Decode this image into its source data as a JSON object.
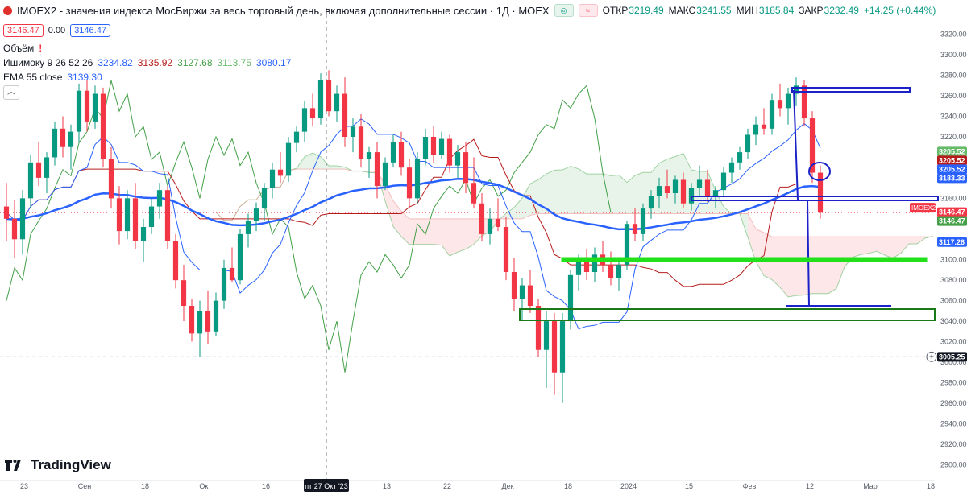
{
  "header": {
    "title": "IMOEX2 - значения индекса МосБиржи за весь торговый день, включая дополнительные сессии · 1Д · MOEX",
    "open_label": "ОТКР",
    "open": "3219.49",
    "high_label": "МАКС",
    "high": "3241.55",
    "low_label": "МИН",
    "low": "3185.84",
    "close_label": "ЗАКР",
    "close": "3232.49",
    "change": "+14.25 (+0.44%)",
    "bid": "3146.47",
    "spread": "0.00",
    "ask": "3146.47"
  },
  "indicators": {
    "volume_label": "Объём",
    "volume_warning": "!",
    "ichimoku_label": "Ишимоку 9 26 52 26",
    "ichimoku_values": [
      "3234.82",
      "3135.92",
      "3127.68",
      "3113.75",
      "3080.17"
    ],
    "ichimoku_colors": [
      "#2962ff",
      "#b71c1c",
      "#43a047",
      "#66bb6a",
      "#2962ff"
    ],
    "ema_label": "EMA 55 close",
    "ema_value": "3139.30",
    "collapse_icon": "chevron-up-icon"
  },
  "branding": {
    "name": "TradingView"
  },
  "colors": {
    "up": "#089981",
    "down": "#f23645",
    "ema": "#2962ff",
    "tenkan": "#2962ff",
    "kijun": "#b71c1c",
    "chikou": "#43a047"
  },
  "chart_data": {
    "type": "candlestick",
    "symbol": "IMOEX2",
    "timeframe": "1Д",
    "ylim": [
      2890,
      3330
    ],
    "y_ticks": [
      2900,
      2920,
      2940,
      2960,
      2980,
      3000,
      3020,
      3040,
      3060,
      3080,
      3100,
      3120,
      3140,
      3160,
      3180,
      3200,
      3220,
      3240,
      3260,
      3280,
      3300,
      3320
    ],
    "x_labels": [
      "23",
      "Сен",
      "18",
      "Окт",
      "16",
      "пт 27 Окт '23",
      "13",
      "22",
      "Дек",
      "18",
      "2024",
      "15",
      "Фев",
      "12",
      "Мар",
      "18"
    ],
    "crosshair_date": "пт 27 Окт '23",
    "crosshair_price": "3005.25",
    "price_labels": [
      {
        "text": "3205.52",
        "price": 3205.52,
        "color": "#66bb6a"
      },
      {
        "text": "3205.52",
        "price": 3205.52,
        "color": "#b71c1c"
      },
      {
        "text": "3205.52",
        "price": 3205.52,
        "color": "#2962ff"
      },
      {
        "text": "3183.33",
        "price": 3183.33,
        "color": "#2962ff"
      },
      {
        "text": "3146.47",
        "price": 3146.47,
        "color": "#f23645"
      },
      {
        "text": "3146.47",
        "price": 3146.47,
        "color": "#43a047"
      },
      {
        "text": "3117.26",
        "price": 3117.26,
        "color": "#2962ff"
      },
      {
        "text": "3005.25",
        "price": 3005.25,
        "color": "#131722"
      }
    ],
    "symbol_tag": "IMOEX2",
    "ohlc": [
      [
        3152,
        3175,
        3118,
        3140
      ],
      [
        3140,
        3158,
        3102,
        3120
      ],
      [
        3120,
        3168,
        3105,
        3160
      ],
      [
        3160,
        3202,
        3150,
        3195
      ],
      [
        3195,
        3215,
        3172,
        3180
      ],
      [
        3180,
        3205,
        3165,
        3200
      ],
      [
        3200,
        3235,
        3192,
        3228
      ],
      [
        3228,
        3240,
        3200,
        3210
      ],
      [
        3210,
        3232,
        3188,
        3225
      ],
      [
        3225,
        3272,
        3215,
        3265
      ],
      [
        3265,
        3275,
        3225,
        3235
      ],
      [
        3235,
        3270,
        3228,
        3262
      ],
      [
        3262,
        3268,
        3190,
        3198
      ],
      [
        3198,
        3210,
        3150,
        3160
      ],
      [
        3160,
        3172,
        3115,
        3128
      ],
      [
        3128,
        3168,
        3120,
        3160
      ],
      [
        3160,
        3175,
        3110,
        3118
      ],
      [
        3118,
        3140,
        3098,
        3132
      ],
      [
        3132,
        3160,
        3125,
        3152
      ],
      [
        3152,
        3175,
        3140,
        3168
      ],
      [
        3168,
        3172,
        3110,
        3118
      ],
      [
        3118,
        3125,
        3072,
        3080
      ],
      [
        3080,
        3095,
        3040,
        3055
      ],
      [
        3055,
        3062,
        3020,
        3028
      ],
      [
        3028,
        3060,
        3005,
        3050
      ],
      [
        3050,
        3070,
        3018,
        3030
      ],
      [
        3030,
        3068,
        3025,
        3060
      ],
      [
        3060,
        3100,
        3052,
        3092
      ],
      [
        3092,
        3112,
        3078,
        3080
      ],
      [
        3080,
        3130,
        3076,
        3125
      ],
      [
        3125,
        3145,
        3112,
        3138
      ],
      [
        3138,
        3156,
        3128,
        3150
      ],
      [
        3150,
        3175,
        3138,
        3170
      ],
      [
        3170,
        3195,
        3160,
        3188
      ],
      [
        3188,
        3205,
        3175,
        3182
      ],
      [
        3182,
        3220,
        3176,
        3214
      ],
      [
        3214,
        3230,
        3205,
        3225
      ],
      [
        3225,
        3255,
        3215,
        3248
      ],
      [
        3248,
        3262,
        3230,
        3238
      ],
      [
        3238,
        3282,
        3232,
        3275
      ],
      [
        3275,
        3285,
        3240,
        3245
      ],
      [
        3245,
        3270,
        3235,
        3262
      ],
      [
        3262,
        3278,
        3210,
        3220
      ],
      [
        3220,
        3238,
        3205,
        3230
      ],
      [
        3230,
        3242,
        3190,
        3198
      ],
      [
        3198,
        3210,
        3180,
        3205
      ],
      [
        3205,
        3215,
        3160,
        3172
      ],
      [
        3172,
        3200,
        3168,
        3195
      ],
      [
        3195,
        3222,
        3190,
        3215
      ],
      [
        3215,
        3225,
        3182,
        3190
      ],
      [
        3190,
        3198,
        3150,
        3160
      ],
      [
        3160,
        3205,
        3155,
        3198
      ],
      [
        3198,
        3228,
        3192,
        3220
      ],
      [
        3220,
        3230,
        3195,
        3202
      ],
      [
        3202,
        3225,
        3198,
        3218
      ],
      [
        3218,
        3222,
        3185,
        3192
      ],
      [
        3192,
        3212,
        3180,
        3205
      ],
      [
        3205,
        3215,
        3165,
        3175
      ],
      [
        3175,
        3200,
        3150,
        3155
      ],
      [
        3155,
        3165,
        3118,
        3125
      ],
      [
        3125,
        3150,
        3115,
        3140
      ],
      [
        3140,
        3160,
        3128,
        3132
      ],
      [
        3132,
        3142,
        3080,
        3088
      ],
      [
        3088,
        3102,
        3050,
        3062
      ],
      [
        3062,
        3082,
        3040,
        3075
      ],
      [
        3075,
        3090,
        3048,
        3055
      ],
      [
        3055,
        3062,
        3005,
        3012
      ],
      [
        3012,
        3050,
        2975,
        3040
      ],
      [
        3040,
        3048,
        2968,
        2990
      ],
      [
        2990,
        3048,
        2960,
        3040
      ],
      [
        3040,
        3090,
        3032,
        3085
      ],
      [
        3085,
        3105,
        3070,
        3098
      ],
      [
        3098,
        3110,
        3080,
        3088
      ],
      [
        3088,
        3112,
        3078,
        3105
      ],
      [
        3105,
        3118,
        3088,
        3095
      ],
      [
        3095,
        3108,
        3075,
        3082
      ],
      [
        3082,
        3100,
        3070,
        3095
      ],
      [
        3095,
        3138,
        3090,
        3135
      ],
      [
        3135,
        3150,
        3118,
        3125
      ],
      [
        3125,
        3155,
        3118,
        3150
      ],
      [
        3150,
        3168,
        3140,
        3162
      ],
      [
        3162,
        3180,
        3150,
        3172
      ],
      [
        3172,
        3188,
        3160,
        3165
      ],
      [
        3165,
        3182,
        3155,
        3178
      ],
      [
        3178,
        3185,
        3150,
        3155
      ],
      [
        3155,
        3175,
        3148,
        3170
      ],
      [
        3170,
        3192,
        3162,
        3178
      ],
      [
        3178,
        3188,
        3156,
        3162
      ],
      [
        3162,
        3172,
        3150,
        3168
      ],
      [
        3168,
        3190,
        3162,
        3185
      ],
      [
        3185,
        3200,
        3175,
        3195
      ],
      [
        3195,
        3210,
        3188,
        3205
      ],
      [
        3205,
        3228,
        3198,
        3222
      ],
      [
        3222,
        3240,
        3212,
        3232
      ],
      [
        3232,
        3248,
        3222,
        3228
      ],
      [
        3228,
        3262,
        3222,
        3256
      ],
      [
        3256,
        3272,
        3240,
        3248
      ],
      [
        3248,
        3268,
        3232,
        3262
      ],
      [
        3262,
        3278,
        3250,
        3270
      ],
      [
        3270,
        3275,
        3230,
        3238
      ],
      [
        3238,
        3245,
        3175,
        3185
      ],
      [
        3185,
        3192,
        3140,
        3146
      ]
    ]
  }
}
